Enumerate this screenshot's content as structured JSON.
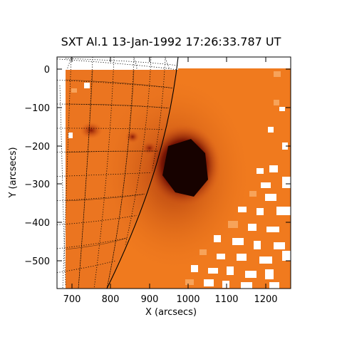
{
  "figure": {
    "title": "SXT Al.1 13-Jan-1992 17:26:33.787 UT",
    "xlabel": "X (arcsecs)",
    "ylabel": "Y (arcsecs)",
    "x_ticks": [
      "700",
      "800",
      "900",
      "1000",
      "1100",
      "1200"
    ],
    "y_ticks": [
      "0",
      "−100",
      "−200",
      "−300",
      "−400",
      "−500"
    ],
    "xlim": [
      645,
      1270
    ],
    "ylim": [
      -580,
      40
    ],
    "colors": {
      "background": "#ffffff",
      "orange": "#f07a1e",
      "light_orange": "#f7a35a",
      "dark_red": "#7a1604",
      "core": "#1a0300",
      "limb_line": "#000000"
    }
  }
}
